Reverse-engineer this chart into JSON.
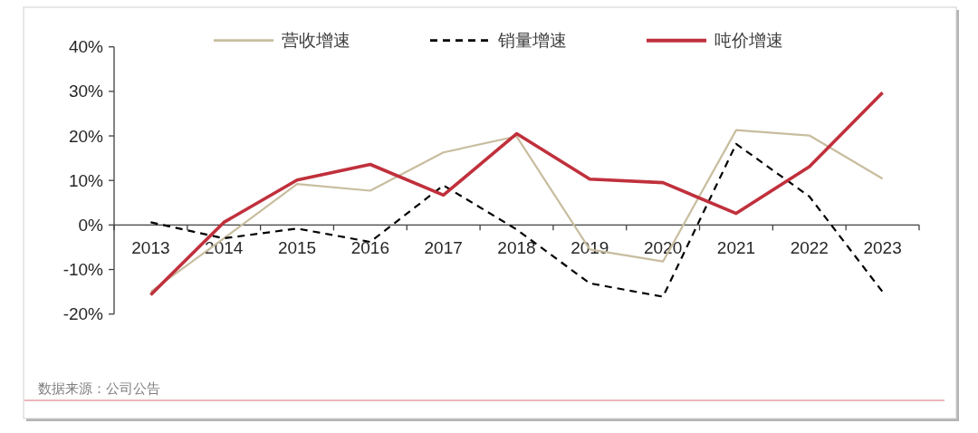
{
  "chart_data": {
    "type": "line",
    "categories": [
      "2013",
      "2014",
      "2015",
      "2016",
      "2017",
      "2018",
      "2019",
      "2020",
      "2021",
      "2022",
      "2023"
    ],
    "series": [
      {
        "name": "营收增速",
        "color": "#c8bd9f",
        "line_style": "solid",
        "values": [
          -15,
          -3,
          9.2,
          7.7,
          16.3,
          19.9,
          -5.5,
          -8.2,
          21.3,
          20.1,
          10.4
        ]
      },
      {
        "name": "销量增速",
        "color": "#000000",
        "line_style": "dashed",
        "values": [
          0.6,
          -3,
          -0.8,
          -3.8,
          8.9,
          -1,
          -13.1,
          -16.1,
          18.2,
          6.4,
          -15
        ]
      },
      {
        "name": "吨价增速",
        "color": "#c0303c",
        "line_style": "solid",
        "values": [
          -15.7,
          0.6,
          10.1,
          13.6,
          6.7,
          20.5,
          10.3,
          9.5,
          2.6,
          13.1,
          29.7
        ]
      }
    ],
    "ylim": [
      -20,
      40
    ],
    "yticks": [
      {
        "value": -20,
        "label": "-20%"
      },
      {
        "value": -10,
        "label": "-10%"
      },
      {
        "value": 0,
        "label": "0%"
      },
      {
        "value": 10,
        "label": "10%"
      },
      {
        "value": 20,
        "label": "20%"
      },
      {
        "value": 30,
        "label": "30%"
      },
      {
        "value": 40,
        "label": "40%"
      }
    ],
    "legend": "top",
    "annotations": [
      "数据来源：公司公告"
    ]
  }
}
